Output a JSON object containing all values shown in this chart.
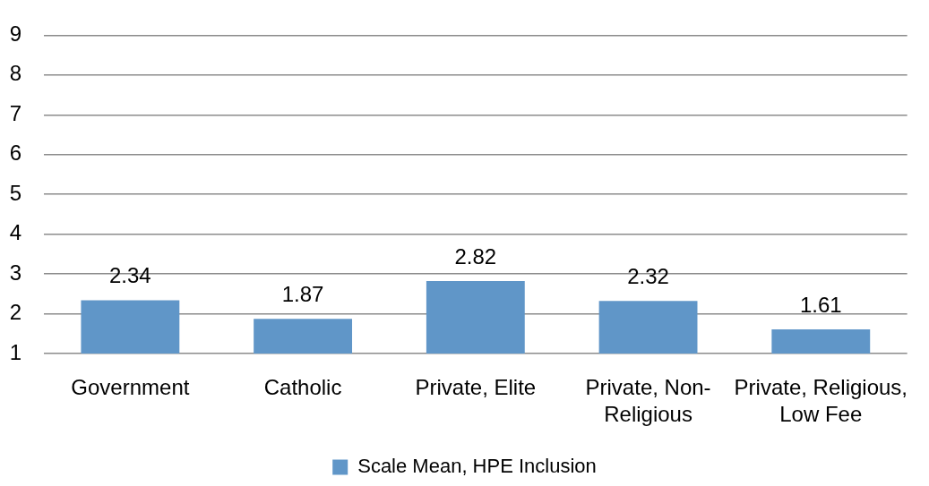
{
  "chart_data": {
    "type": "bar",
    "categories": [
      "Government",
      "Catholic",
      "Private, Elite",
      "Private, Non-Religious",
      "Private, Religious, Low Fee"
    ],
    "series": [
      {
        "name": "Scale Mean, HPE Inclusion",
        "color": "#6096c8",
        "values": [
          2.34,
          1.87,
          2.82,
          2.32,
          1.61
        ]
      }
    ],
    "ylim": [
      1,
      9
    ],
    "yticks": [
      1,
      2,
      3,
      4,
      5,
      6,
      7,
      8,
      9
    ],
    "grid": "y",
    "data_labels": true,
    "legend": "bottom"
  }
}
